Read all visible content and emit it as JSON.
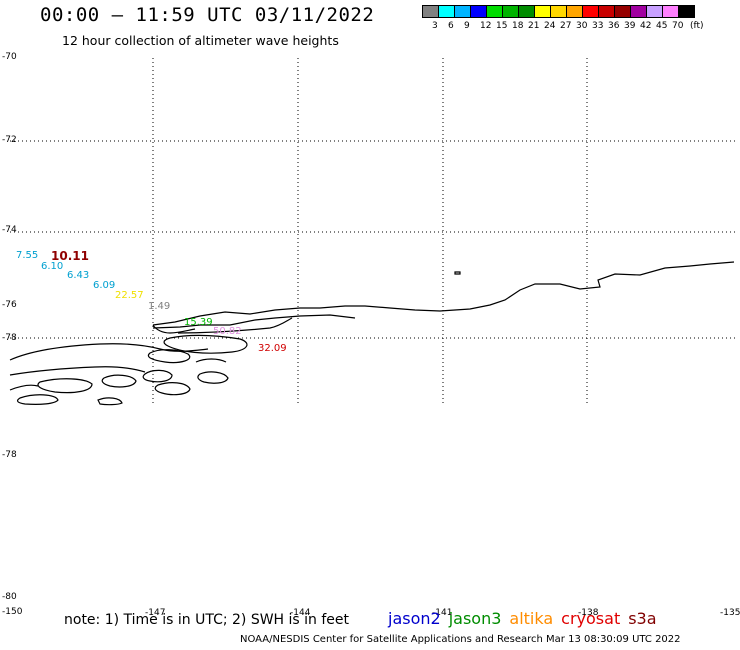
{
  "header": {
    "title": "00:00 – 11:59 UTC 03/11/2022",
    "subtitle": "12 hour collection of altimeter wave heights"
  },
  "color_scale": {
    "colors": [
      "#808080",
      "#00ffff",
      "#00b4ff",
      "#0000ff",
      "#00dc00",
      "#00b400",
      "#008c00",
      "#ffff00",
      "#ffd700",
      "#ffa500",
      "#ff0000",
      "#c80000",
      "#960000",
      "#a000a0",
      "#c8a0ff",
      "#ff80ff",
      "#000000"
    ],
    "labels": [
      "3",
      "6",
      "9",
      "12",
      "15",
      "18",
      "21",
      "24",
      "27",
      "30",
      "33",
      "36",
      "39",
      "42",
      "45",
      "70",
      "(ft)"
    ]
  },
  "axes": {
    "y_labels": [
      "-70",
      "-72",
      "-74",
      "-76",
      "-78",
      "-78",
      "-80"
    ],
    "x_labels": [
      "-150",
      "-147",
      "-144",
      "-141",
      "-138",
      "-135"
    ]
  },
  "observations": [
    {
      "value": "7.55",
      "color": "#00a0d0"
    },
    {
      "value": "10.11",
      "color": "#900000"
    },
    {
      "value": "6.10",
      "color": "#00a0d0"
    },
    {
      "value": "6.43",
      "color": "#00a0d0"
    },
    {
      "value": "6.09",
      "color": "#00a0d0"
    },
    {
      "value": "22.57",
      "color": "#f0e000"
    },
    {
      "value": "1.49",
      "color": "#808080"
    },
    {
      "value": "15.39",
      "color": "#00b400"
    },
    {
      "value": "50.82",
      "color": "#e090e0"
    },
    {
      "value": "32.09",
      "color": "#d00000"
    }
  ],
  "footer": {
    "note": "note: 1) Time is in UTC; 2) SWH is in feet",
    "satellites": [
      {
        "name": "jason2",
        "color": "#0000cc"
      },
      {
        "name": "jason3",
        "color": "#008c00"
      },
      {
        "name": "altika",
        "color": "#ff8c00"
      },
      {
        "name": "cryosat",
        "color": "#e00000"
      },
      {
        "name": "s3a",
        "color": "#800000"
      }
    ],
    "credit": "NOAA/NESDIS Center for Satellite Applications and Research   Mar 13 08:30:09 UTC 2022"
  }
}
